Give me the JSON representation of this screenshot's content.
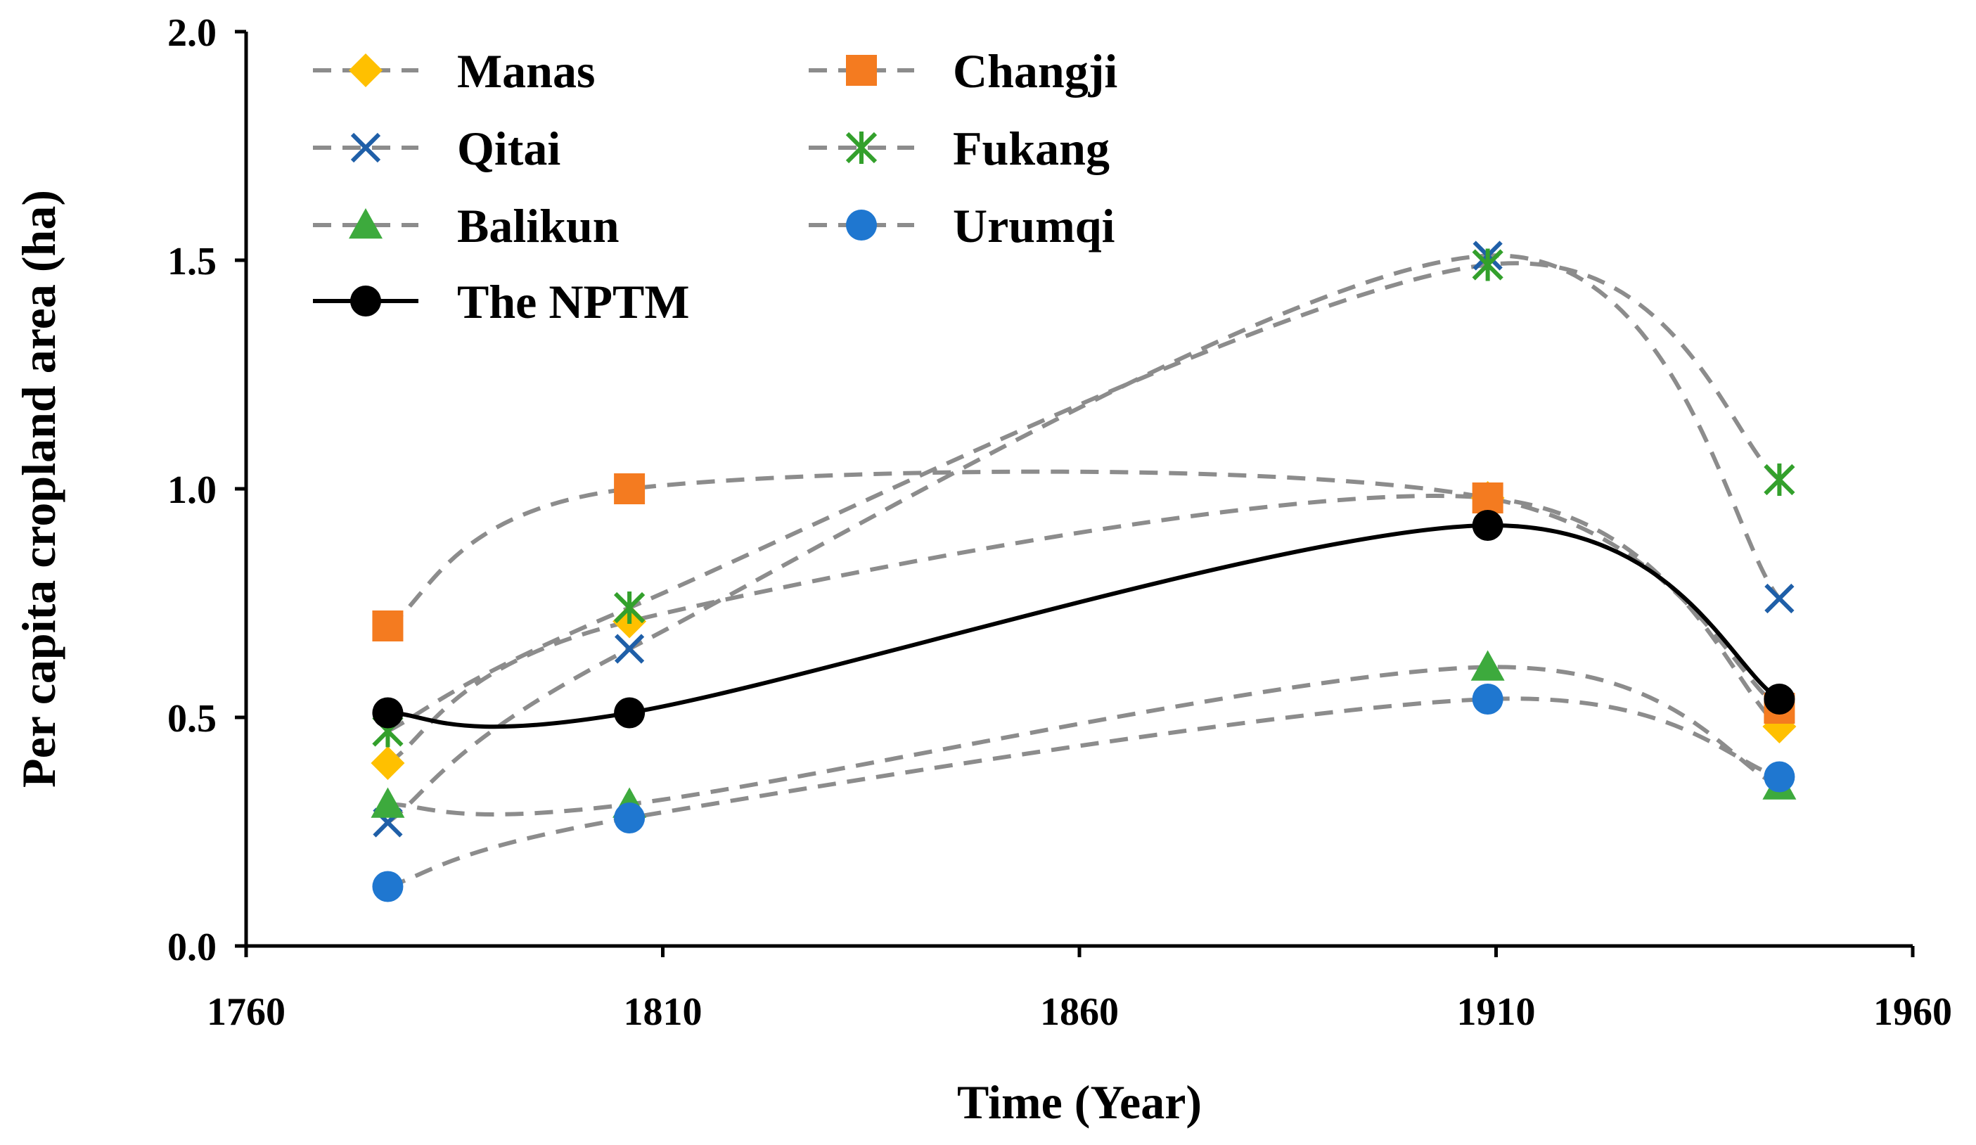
{
  "chart_data": {
    "type": "line",
    "title": "",
    "xlabel": "Time (Year)",
    "ylabel": "Per capita cropland area (ha)",
    "xlim": [
      1760,
      1960
    ],
    "ylim": [
      0.0,
      2.0
    ],
    "x_ticks": [
      "1760",
      "1810",
      "1860",
      "1910",
      "1960"
    ],
    "y_ticks": [
      "0.0",
      "0.5",
      "1.0",
      "1.5",
      "2.0"
    ],
    "grid": false,
    "legend_position": "top-left",
    "x": [
      1777,
      1806,
      1909,
      1944
    ],
    "series": [
      {
        "name": "Manas",
        "values": [
          0.4,
          0.71,
          0.98,
          0.48
        ],
        "color": "#FFC000",
        "marker": "diamond",
        "style": "dashed"
      },
      {
        "name": "Changji",
        "values": [
          0.7,
          1.0,
          0.98,
          0.52
        ],
        "color": "#F47B20",
        "marker": "square",
        "style": "dashed"
      },
      {
        "name": "Qitai",
        "values": [
          0.27,
          0.65,
          1.51,
          0.76
        ],
        "color": "#1F5FA8",
        "marker": "x",
        "style": "dashed"
      },
      {
        "name": "Fukang",
        "values": [
          0.47,
          0.74,
          1.49,
          1.02
        ],
        "color": "#33A02C",
        "marker": "star",
        "style": "dashed"
      },
      {
        "name": "Balikun",
        "values": [
          0.31,
          0.31,
          0.61,
          0.35
        ],
        "color": "#3DAA3D",
        "marker": "triangle",
        "style": "dashed"
      },
      {
        "name": "Urumqi",
        "values": [
          0.13,
          0.28,
          0.54,
          0.37
        ],
        "color": "#1F77D0",
        "marker": "circle",
        "style": "dashed"
      },
      {
        "name": "The NPTM",
        "values": [
          0.51,
          0.51,
          0.92,
          0.54
        ],
        "color": "#000000",
        "marker": "circle",
        "style": "solid"
      }
    ]
  }
}
